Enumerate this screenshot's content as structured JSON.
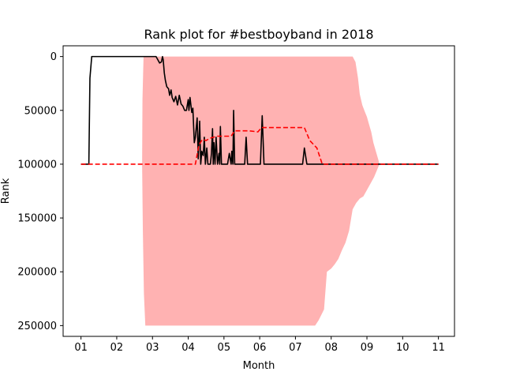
{
  "chart_data": {
    "type": "line",
    "title": "Rank plot for #bestboyband in 2018",
    "xlabel": "Month",
    "ylabel": "Rank",
    "x_ticks": [
      "01",
      "02",
      "03",
      "04",
      "05",
      "06",
      "07",
      "08",
      "09",
      "10",
      "11"
    ],
    "y_ticks": [
      "0",
      "50000",
      "100000",
      "150000",
      "200000",
      "250000"
    ],
    "y_tick_values": [
      0,
      50000,
      100000,
      150000,
      200000,
      250000
    ],
    "xlim": [
      0.5,
      11.45
    ],
    "ylim": [
      260000,
      -10000
    ],
    "y_inverted": true,
    "grid": false,
    "series": [
      {
        "style": "solid",
        "color": "#000000",
        "points": [
          [
            1.0,
            100000
          ],
          [
            1.22,
            100000
          ],
          [
            1.25,
            20000
          ],
          [
            1.3,
            0
          ],
          [
            1.6,
            0
          ],
          [
            2.0,
            0
          ],
          [
            2.5,
            0
          ],
          [
            2.9,
            0
          ],
          [
            3.0,
            0
          ],
          [
            3.05,
            0
          ],
          [
            3.1,
            0
          ],
          [
            3.15,
            3000
          ],
          [
            3.2,
            6000
          ],
          [
            3.25,
            5000
          ],
          [
            3.28,
            0
          ],
          [
            3.3,
            3000
          ],
          [
            3.33,
            15000
          ],
          [
            3.36,
            22000
          ],
          [
            3.4,
            28000
          ],
          [
            3.45,
            30000
          ],
          [
            3.48,
            36000
          ],
          [
            3.52,
            31000
          ],
          [
            3.55,
            38000
          ],
          [
            3.6,
            42000
          ],
          [
            3.65,
            37000
          ],
          [
            3.7,
            45000
          ],
          [
            3.75,
            36000
          ],
          [
            3.8,
            44000
          ],
          [
            3.85,
            46000
          ],
          [
            3.9,
            50000
          ],
          [
            3.95,
            50000
          ],
          [
            4.0,
            40000
          ],
          [
            4.02,
            50000
          ],
          [
            4.05,
            38000
          ],
          [
            4.1,
            52000
          ],
          [
            4.13,
            48000
          ],
          [
            4.17,
            80000
          ],
          [
            4.2,
            75000
          ],
          [
            4.25,
            57000
          ],
          [
            4.28,
            95000
          ],
          [
            4.32,
            60000
          ],
          [
            4.35,
            100000
          ],
          [
            4.38,
            88000
          ],
          [
            4.42,
            92000
          ],
          [
            4.45,
            75000
          ],
          [
            4.48,
            100000
          ],
          [
            4.52,
            85000
          ],
          [
            4.55,
            100000
          ],
          [
            4.62,
            100000
          ],
          [
            4.65,
            90000
          ],
          [
            4.68,
            67000
          ],
          [
            4.7,
            100000
          ],
          [
            4.72,
            80000
          ],
          [
            4.75,
            100000
          ],
          [
            4.78,
            75000
          ],
          [
            4.82,
            100000
          ],
          [
            4.86,
            90000
          ],
          [
            4.88,
            100000
          ],
          [
            4.9,
            65000
          ],
          [
            4.93,
            100000
          ],
          [
            5.0,
            100000
          ],
          [
            5.1,
            100000
          ],
          [
            5.15,
            90000
          ],
          [
            5.2,
            100000
          ],
          [
            5.22,
            88000
          ],
          [
            5.25,
            100000
          ],
          [
            5.27,
            50000
          ],
          [
            5.3,
            100000
          ],
          [
            5.5,
            100000
          ],
          [
            5.58,
            100000
          ],
          [
            5.62,
            75000
          ],
          [
            5.66,
            100000
          ],
          [
            5.9,
            100000
          ],
          [
            6.02,
            100000
          ],
          [
            6.07,
            55000
          ],
          [
            6.12,
            100000
          ],
          [
            6.5,
            100000
          ],
          [
            7.0,
            100000
          ],
          [
            7.2,
            100000
          ],
          [
            7.25,
            85000
          ],
          [
            7.32,
            100000
          ],
          [
            8.0,
            100000
          ],
          [
            9.0,
            100000
          ],
          [
            10.0,
            100000
          ],
          [
            11.0,
            100000
          ]
        ]
      },
      {
        "style": "dashed",
        "color": "#ff0000",
        "points": [
          [
            1.0,
            100000
          ],
          [
            4.2,
            100000
          ],
          [
            4.3,
            82000
          ],
          [
            4.4,
            77000
          ],
          [
            4.5,
            78000
          ],
          [
            4.6,
            76000
          ],
          [
            4.8,
            74000
          ],
          [
            5.0,
            74000
          ],
          [
            5.2,
            74000
          ],
          [
            5.3,
            69000
          ],
          [
            5.7,
            69000
          ],
          [
            5.95,
            70000
          ],
          [
            6.05,
            66000
          ],
          [
            6.5,
            66000
          ],
          [
            7.0,
            66000
          ],
          [
            7.25,
            66000
          ],
          [
            7.4,
            78000
          ],
          [
            7.6,
            85000
          ],
          [
            7.75,
            100000
          ],
          [
            8.0,
            100000
          ],
          [
            9.0,
            100000
          ],
          [
            10.0,
            100000
          ],
          [
            11.0,
            100000
          ]
        ]
      }
    ],
    "band": {
      "color": "#ffb2b2",
      "upper": [
        [
          2.75,
          0
        ],
        [
          3.0,
          0
        ],
        [
          4.0,
          0
        ],
        [
          5.0,
          0
        ],
        [
          6.0,
          0
        ],
        [
          7.0,
          0
        ],
        [
          8.0,
          0
        ],
        [
          8.6,
          0
        ],
        [
          8.68,
          5000
        ],
        [
          8.75,
          20000
        ],
        [
          8.8,
          35000
        ],
        [
          8.87,
          45000
        ],
        [
          8.95,
          52000
        ],
        [
          9.0,
          56000
        ],
        [
          9.05,
          62000
        ],
        [
          9.12,
          70000
        ],
        [
          9.18,
          80000
        ],
        [
          9.25,
          88000
        ],
        [
          9.32,
          96000
        ],
        [
          9.35,
          100000
        ]
      ],
      "lower": [
        [
          2.75,
          0
        ],
        [
          2.72,
          40000
        ],
        [
          2.71,
          100000
        ],
        [
          2.73,
          160000
        ],
        [
          2.76,
          220000
        ],
        [
          2.8,
          250000
        ],
        [
          3.5,
          250000
        ],
        [
          4.0,
          250000
        ],
        [
          5.0,
          250000
        ],
        [
          6.0,
          250000
        ],
        [
          7.0,
          250000
        ],
        [
          7.55,
          250000
        ],
        [
          7.65,
          245000
        ],
        [
          7.8,
          235000
        ],
        [
          7.88,
          200000
        ],
        [
          8.0,
          197000
        ],
        [
          8.1,
          193000
        ],
        [
          8.2,
          188000
        ],
        [
          8.3,
          180000
        ],
        [
          8.4,
          173000
        ],
        [
          8.5,
          162000
        ],
        [
          8.55,
          152000
        ],
        [
          8.6,
          142000
        ],
        [
          8.7,
          136000
        ],
        [
          8.8,
          132000
        ],
        [
          8.9,
          130000
        ],
        [
          9.0,
          124000
        ],
        [
          9.1,
          118000
        ],
        [
          9.2,
          112000
        ],
        [
          9.3,
          104000
        ],
        [
          9.35,
          100000
        ]
      ]
    }
  }
}
